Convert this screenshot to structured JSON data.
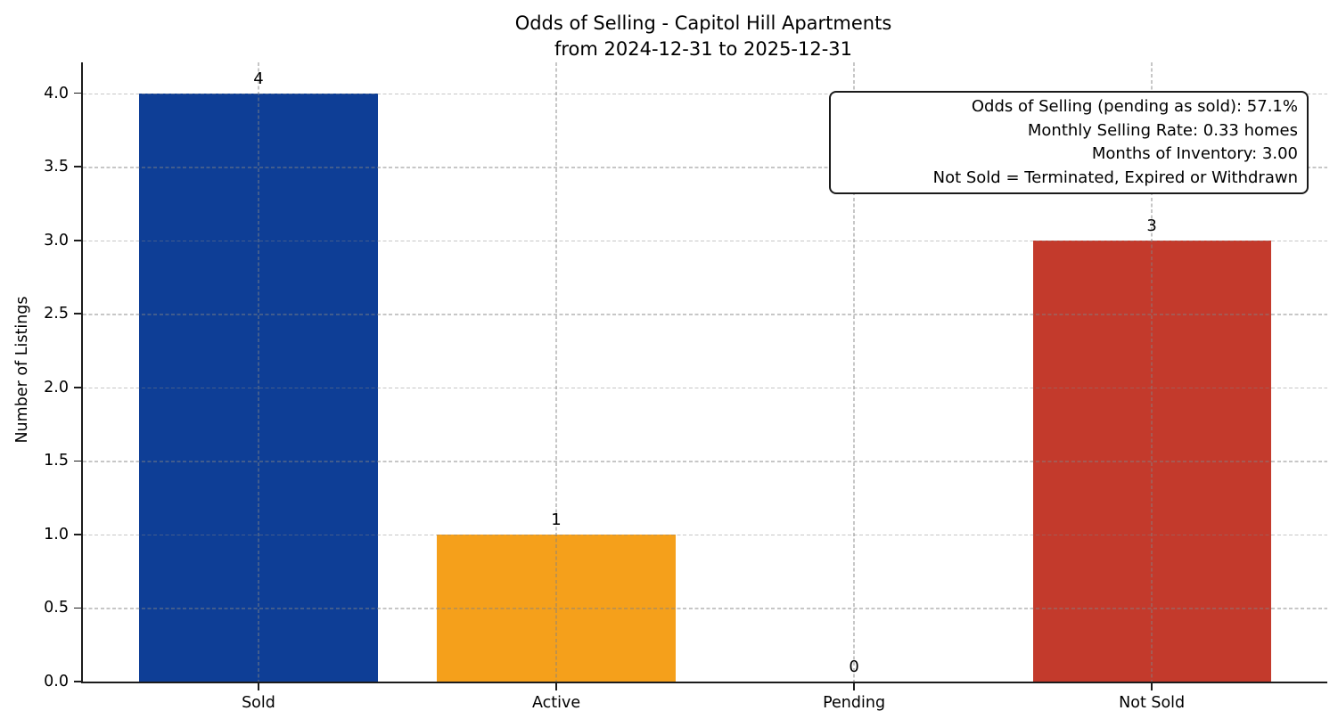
{
  "chart_data": {
    "type": "bar",
    "title": "Odds of Selling - Capitol Hill Apartments",
    "subtitle": "from 2024-12-31 to 2025-12-31",
    "xlabel": "",
    "ylabel": "Number of Listings",
    "categories": [
      "Sold",
      "Active",
      "Pending",
      "Not Sold"
    ],
    "values": [
      4,
      1,
      0,
      3
    ],
    "value_labels": [
      "4",
      "1",
      "0",
      "3"
    ],
    "bar_colors": [
      "#0e3e96",
      "#f5a01b",
      null,
      "#c33a2c"
    ],
    "ylim": [
      0,
      4.21
    ],
    "yticks": [
      0,
      0.5,
      1,
      1.5,
      2,
      2.5,
      3,
      3.5,
      4
    ],
    "ytick_labels": [
      "0.0",
      "0.5",
      "1.0",
      "1.5",
      "2.0",
      "2.5",
      "3.0",
      "3.5",
      "4.0"
    ],
    "grid": {
      "visible": true,
      "style": "dashed",
      "axes": "both",
      "above_bars": true
    },
    "legend": "none",
    "annotation_lines": [
      "Odds of Selling (pending as sold): 57.1%",
      "Monthly Selling Rate: 0.33 homes",
      "Months of Inventory: 3.00",
      "Not Sold = Terminated, Expired or Withdrawn"
    ]
  }
}
